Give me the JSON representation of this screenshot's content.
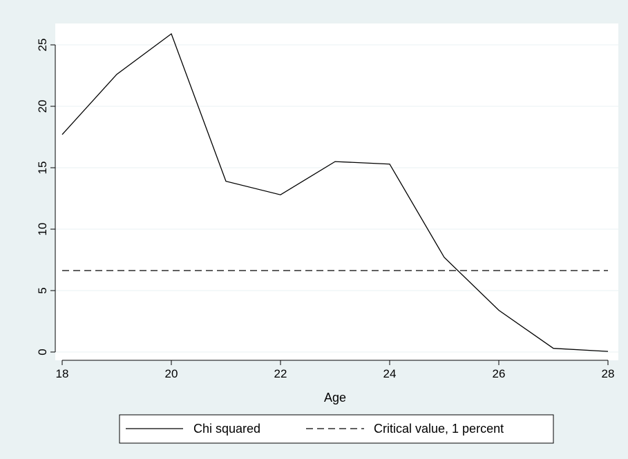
{
  "colors": {
    "background": "#eaf2f3",
    "plot_area": "#ffffff",
    "gridline": "#eaf2f3",
    "series": "#000000"
  },
  "chart_data": {
    "type": "line",
    "title": "",
    "xlabel": "Age",
    "ylabel": "",
    "xlim": [
      18,
      28
    ],
    "ylim": [
      0,
      26
    ],
    "x_ticks": [
      18,
      20,
      22,
      24,
      26,
      28
    ],
    "y_ticks": [
      0,
      5,
      10,
      15,
      20,
      25
    ],
    "grid": "horizontal",
    "legend_position": "bottom",
    "x": [
      18,
      19,
      20,
      21,
      22,
      23,
      24,
      25,
      26,
      27,
      28
    ],
    "series": [
      {
        "name": "Chi squared",
        "style": "solid",
        "values": [
          17.7,
          22.6,
          25.9,
          13.9,
          12.8,
          15.5,
          15.3,
          7.7,
          3.4,
          0.3,
          0.05
        ]
      },
      {
        "name": "Critical value, 1 percent",
        "style": "dashed",
        "values": [
          6.63,
          6.63,
          6.63,
          6.63,
          6.63,
          6.63,
          6.63,
          6.63,
          6.63,
          6.63,
          6.63
        ]
      }
    ]
  }
}
